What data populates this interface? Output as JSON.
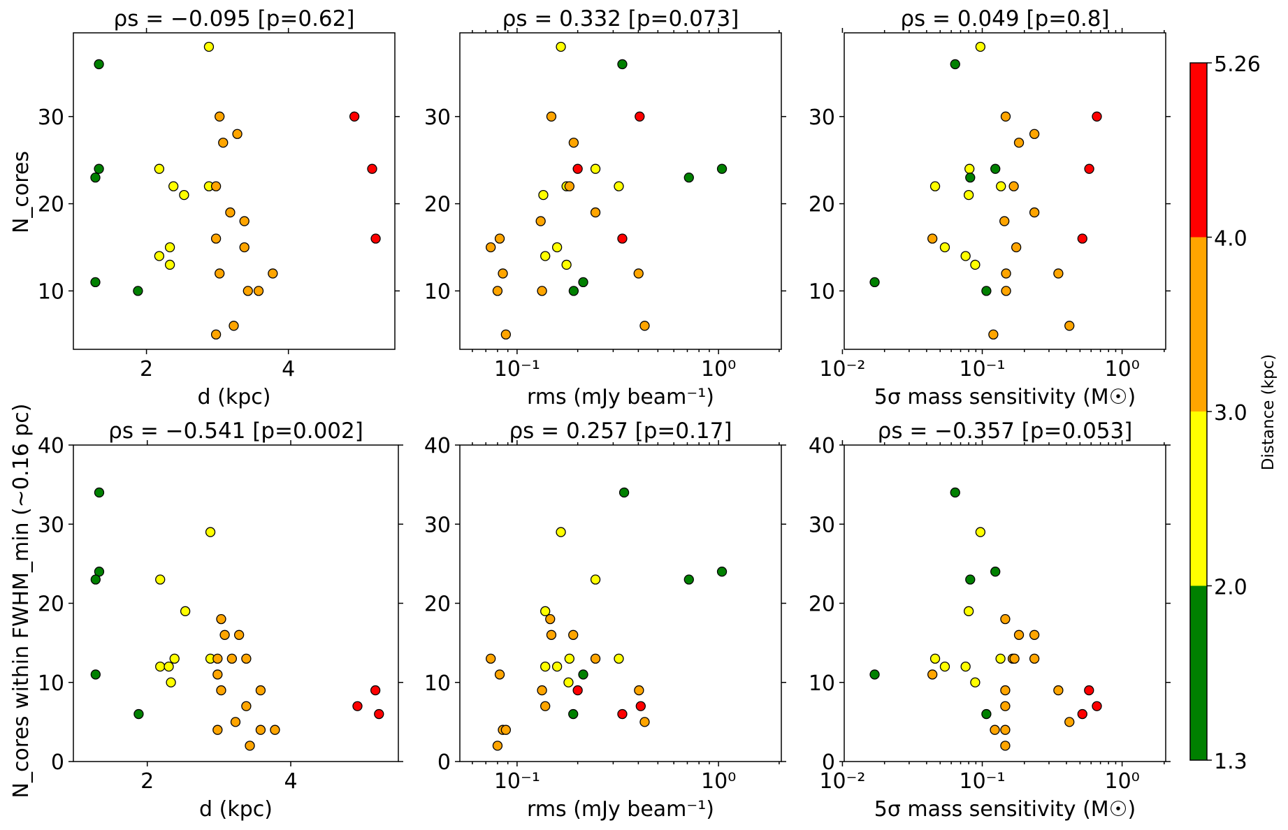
{
  "colorbar": {
    "label": "Distance (kpc)",
    "bounds": [
      1.3,
      2.0,
      3.0,
      4.0,
      5.26
    ],
    "tick_labels": [
      "1.3",
      "2.0",
      "3.0",
      "4.0",
      "5.26"
    ],
    "colors": [
      "#008000",
      "#ffff00",
      "#ffa500",
      "#ff0000"
    ]
  },
  "chart_data": [
    {
      "type": "scatter",
      "title": "ρs = −0.095 [p=0.62]",
      "xlabel": "d (kpc)",
      "ylabel": "N_cores",
      "xscale": "linear",
      "xlim": [
        0.97,
        5.5
      ],
      "ylim": [
        3.3,
        39.6
      ],
      "xticks": [
        2,
        4
      ],
      "yticks": [
        10,
        20,
        30
      ],
      "x": [
        1.33,
        1.33,
        1.28,
        1.28,
        1.88,
        2.18,
        2.18,
        2.33,
        2.33,
        2.38,
        2.53,
        2.88,
        2.88,
        2.98,
        2.98,
        2.98,
        3.03,
        3.03,
        3.08,
        3.18,
        3.23,
        3.28,
        3.38,
        3.38,
        3.43,
        3.58,
        3.78,
        4.93,
        5.18,
        5.23
      ],
      "y": [
        36,
        24,
        23,
        11,
        10,
        24,
        14,
        15,
        13,
        22,
        21,
        38,
        22,
        22,
        16,
        5,
        30,
        12,
        27,
        19,
        6,
        28,
        18,
        15,
        10,
        10,
        12,
        30,
        24,
        16
      ],
      "d": [
        1.3,
        1.3,
        1.3,
        1.3,
        1.9,
        2.2,
        2.2,
        2.3,
        2.3,
        2.4,
        2.5,
        2.9,
        2.9,
        3.0,
        3.0,
        3.0,
        3.0,
        3.0,
        3.1,
        3.2,
        3.2,
        3.3,
        3.4,
        3.4,
        3.4,
        3.6,
        3.8,
        4.9,
        5.2,
        5.2
      ]
    },
    {
      "type": "scatter",
      "title": "ρs = 0.332 [p=0.073]",
      "xlabel": "rms (mJy beam⁻¹)",
      "ylabel": "",
      "xscale": "log",
      "xlim": [
        0.052,
        2.05
      ],
      "ylim": [
        3.3,
        39.6
      ],
      "xticks": [
        0.1,
        1.0
      ],
      "xtick_labels": [
        "10⁻¹",
        "10⁰"
      ],
      "yticks": [
        10,
        20,
        30
      ],
      "x": [
        0.165,
        0.148,
        0.333,
        0.191,
        0.406,
        0.2,
        0.245,
        0.176,
        0.182,
        0.32,
        0.135,
        0.713,
        1.04,
        0.074,
        0.082,
        0.085,
        0.08,
        0.131,
        0.138,
        0.158,
        0.176,
        0.213,
        0.133,
        0.191,
        0.245,
        0.333,
        0.401,
        0.088,
        0.43
      ],
      "y": [
        38,
        30,
        36,
        27,
        30,
        24,
        24,
        22,
        22,
        22,
        21,
        23,
        24,
        15,
        16,
        12,
        10,
        18,
        14,
        15,
        13,
        11,
        10,
        10,
        19,
        16,
        12,
        5,
        6
      ],
      "d": [
        2.9,
        3.0,
        1.3,
        3.1,
        4.9,
        5.2,
        2.2,
        2.4,
        3.0,
        2.9,
        2.5,
        1.3,
        1.3,
        3.4,
        3.0,
        3.8,
        3.6,
        3.4,
        2.2,
        2.3,
        2.3,
        1.3,
        3.4,
        1.9,
        3.2,
        5.2,
        3.0,
        3.0,
        3.2
      ]
    },
    {
      "type": "scatter",
      "title": "ρs = 0.049 [p=0.8]",
      "xlabel": "5σ mass sensitivity (M☉)",
      "ylabel": "",
      "xscale": "log",
      "xlim": [
        0.0103,
        2.05
      ],
      "ylim": [
        3.3,
        39.6
      ],
      "xticks": [
        0.01,
        0.1,
        1.0
      ],
      "xtick_labels": [
        "10⁻²",
        "10⁻¹",
        "10⁰"
      ],
      "yticks": [
        10,
        20,
        30
      ],
      "x": [
        0.097,
        0.064,
        0.147,
        0.66,
        0.183,
        0.236,
        0.081,
        0.082,
        0.124,
        0.582,
        0.046,
        0.08,
        0.136,
        0.168,
        0.144,
        0.236,
        0.017,
        0.044,
        0.054,
        0.076,
        0.089,
        0.148,
        0.175,
        0.52,
        0.107,
        0.148,
        0.35,
        0.12,
        0.42
      ],
      "y": [
        38,
        36,
        30,
        30,
        27,
        28,
        24,
        23,
        24,
        24,
        22,
        21,
        22,
        22,
        18,
        19,
        11,
        16,
        15,
        14,
        13,
        12,
        15,
        16,
        10,
        10,
        12,
        5,
        6
      ],
      "d": [
        2.9,
        1.3,
        3.0,
        4.9,
        3.1,
        3.3,
        2.2,
        1.3,
        1.3,
        5.2,
        2.4,
        2.5,
        2.9,
        3.0,
        3.4,
        3.2,
        1.3,
        3.0,
        2.3,
        2.2,
        2.3,
        3.0,
        3.4,
        5.2,
        1.9,
        3.6,
        3.8,
        3.0,
        3.2
      ]
    },
    {
      "type": "scatter",
      "title": "ρs = −0.541 [p=0.002]",
      "xlabel": "d (kpc)",
      "ylabel": "N_cores within FWHM_min (~0.16 pc)",
      "xscale": "linear",
      "xlim": [
        0.97,
        5.5
      ],
      "ylim": [
        0,
        40
      ],
      "xticks": [
        2,
        4
      ],
      "yticks": [
        0,
        10,
        20,
        30,
        40
      ],
      "x": [
        1.33,
        1.33,
        1.28,
        1.28,
        1.88,
        2.18,
        2.18,
        2.3,
        2.33,
        2.38,
        2.53,
        2.88,
        2.88,
        2.98,
        2.98,
        2.98,
        3.03,
        3.03,
        3.08,
        3.18,
        3.23,
        3.28,
        3.38,
        3.38,
        3.43,
        3.58,
        3.58,
        3.78,
        4.93,
        5.18,
        5.23
      ],
      "y": [
        34,
        24,
        23,
        11,
        6,
        23,
        12,
        12,
        10,
        13,
        19,
        29,
        13,
        13,
        11,
        4,
        18,
        9,
        16,
        13,
        5,
        16,
        13,
        7,
        2,
        9,
        4,
        4,
        7,
        9,
        6
      ],
      "d": [
        1.3,
        1.3,
        1.3,
        1.3,
        1.9,
        2.2,
        2.2,
        2.3,
        2.3,
        2.4,
        2.5,
        2.9,
        2.9,
        3.0,
        3.0,
        3.0,
        3.0,
        3.0,
        3.1,
        3.2,
        3.2,
        3.3,
        3.4,
        3.4,
        3.4,
        3.6,
        3.6,
        3.8,
        4.9,
        5.2,
        5.2
      ]
    },
    {
      "type": "scatter",
      "title": "ρs = 0.257 [p=0.17]",
      "xlabel": "rms (mJy beam⁻¹)",
      "ylabel": "",
      "xscale": "log",
      "xlim": [
        0.052,
        2.05
      ],
      "ylim": [
        0,
        40
      ],
      "xticks": [
        0.1,
        1.0
      ],
      "xtick_labels": [
        "10⁻¹",
        "10⁰"
      ],
      "yticks": [
        0,
        10,
        20,
        30,
        40
      ],
      "x": [
        0.34,
        0.165,
        0.713,
        1.04,
        0.245,
        0.138,
        0.146,
        0.148,
        0.19,
        0.074,
        0.138,
        0.158,
        0.182,
        0.32,
        0.245,
        0.082,
        0.133,
        0.213,
        0.18,
        0.2,
        0.403,
        0.085,
        0.138,
        0.333,
        0.411,
        0.088,
        0.43,
        0.08,
        0.19
      ],
      "y": [
        34,
        29,
        23,
        24,
        23,
        19,
        18,
        16,
        16,
        13,
        12,
        12,
        13,
        13,
        13,
        11,
        9,
        11,
        10,
        9,
        9,
        4,
        7,
        6,
        7,
        4,
        5,
        2,
        6
      ],
      "d": [
        1.3,
        2.9,
        1.3,
        1.3,
        2.2,
        2.5,
        3.4,
        3.1,
        3.3,
        3.4,
        2.2,
        2.3,
        2.9,
        2.9,
        3.2,
        3.0,
        3.6,
        1.3,
        2.3,
        5.2,
        3.0,
        3.6,
        3.4,
        5.2,
        4.9,
        3.0,
        3.2,
        3.4,
        1.9
      ]
    },
    {
      "type": "scatter",
      "title": "ρs = −0.357 [p=0.053]",
      "xlabel": "5σ mass sensitivity (M☉)",
      "ylabel": "",
      "xscale": "log",
      "xlim": [
        0.0103,
        2.05
      ],
      "ylim": [
        0,
        40
      ],
      "xticks": [
        0.01,
        0.1,
        1.0
      ],
      "xtick_labels": [
        "10⁻²",
        "10⁻¹",
        "10⁰"
      ],
      "yticks": [
        0,
        10,
        20,
        30,
        40
      ],
      "x": [
        0.064,
        0.097,
        0.082,
        0.124,
        0.08,
        0.146,
        0.183,
        0.236,
        0.046,
        0.054,
        0.076,
        0.135,
        0.165,
        0.17,
        0.236,
        0.017,
        0.044,
        0.089,
        0.146,
        0.35,
        0.107,
        0.146,
        0.58,
        0.66,
        0.52,
        0.123,
        0.146,
        0.42,
        0.146
      ],
      "y": [
        34,
        29,
        23,
        24,
        19,
        18,
        16,
        16,
        13,
        12,
        12,
        13,
        13,
        13,
        13,
        11,
        11,
        10,
        9,
        9,
        6,
        7,
        9,
        7,
        6,
        4,
        4,
        5,
        2
      ],
      "d": [
        1.3,
        2.9,
        1.3,
        1.3,
        2.2,
        3.0,
        3.1,
        3.3,
        2.4,
        2.5,
        2.2,
        2.9,
        3.0,
        3.2,
        3.4,
        1.3,
        3.0,
        2.3,
        3.6,
        3.8,
        1.9,
        3.4,
        5.2,
        4.9,
        5.2,
        3.0,
        3.2,
        3.2,
        3.4
      ]
    }
  ]
}
